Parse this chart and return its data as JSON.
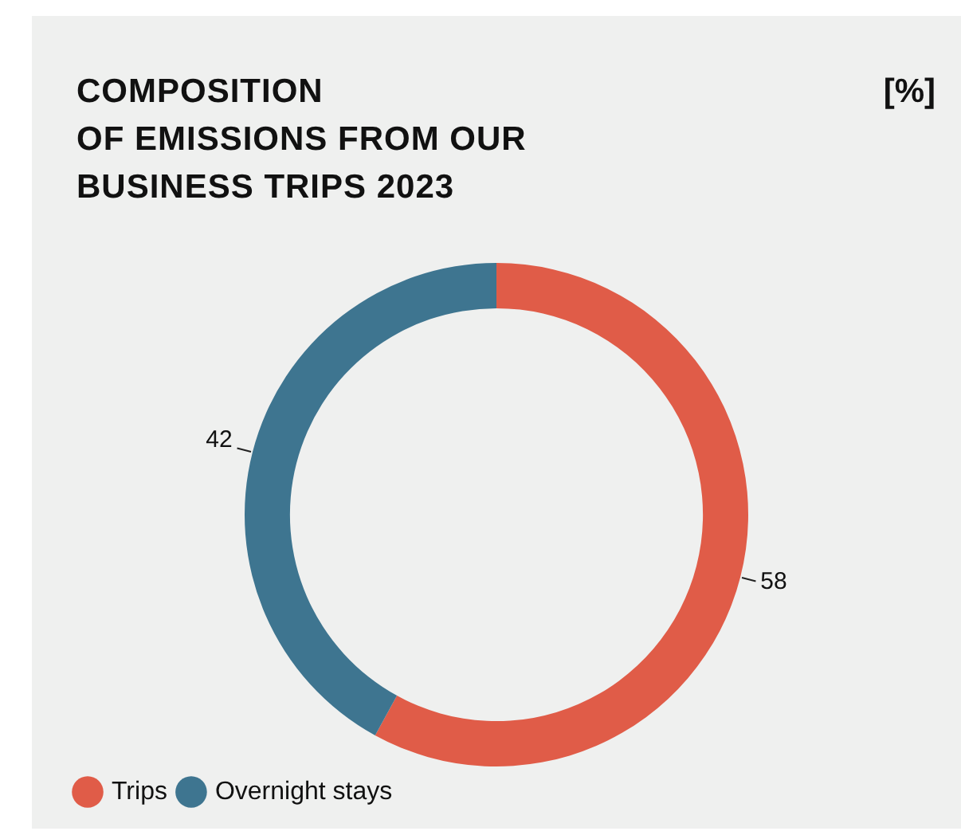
{
  "chart_data": {
    "type": "donut",
    "title": "COMPOSITION\nOF EMISSIONS FROM OUR\nBUSINESS TRIPS 2023",
    "annotations": [
      "[%]"
    ],
    "categories": [
      "Trips",
      "Overnight stays"
    ],
    "values": [
      58,
      42
    ],
    "colors": [
      "#e05c48",
      "#3e7590"
    ],
    "data_labels": true,
    "legend": "bottom left"
  }
}
